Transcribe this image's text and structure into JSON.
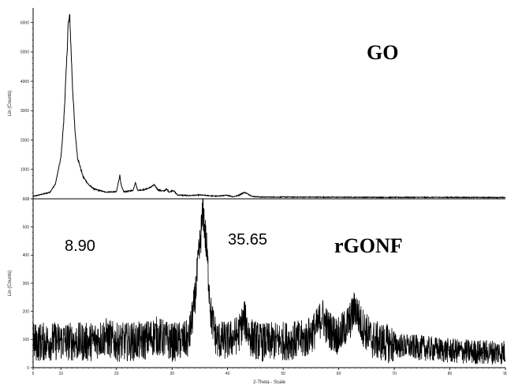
{
  "chart_data": [
    {
      "type": "line",
      "title": "",
      "annotation": "GO",
      "ylabel": "Lin (Counts)",
      "xlim": [
        5,
        90
      ],
      "ylim": [
        0,
        6500
      ],
      "yticks": [
        0,
        1000,
        2000,
        3000,
        4000,
        5000,
        6000
      ],
      "series": [
        {
          "x": [
            5,
            8,
            9,
            10,
            10.5,
            11,
            11.3,
            11.6,
            11.8,
            12.1,
            12.5,
            13,
            14,
            15,
            16,
            18,
            20,
            20.6,
            20.9,
            21.3,
            22,
            23,
            23.4,
            23.8,
            25,
            26,
            26.8,
            27.5,
            28.5,
            29,
            29.5,
            30.2,
            31,
            33,
            35,
            38,
            40,
            41,
            42,
            43,
            43.5,
            44.5,
            46,
            50,
            60,
            70,
            80,
            90
          ],
          "y": [
            80,
            220,
            500,
            1400,
            2600,
            4500,
            5900,
            6200,
            5200,
            3800,
            2400,
            1400,
            750,
            480,
            330,
            230,
            240,
            800,
            420,
            240,
            250,
            290,
            570,
            290,
            310,
            380,
            470,
            300,
            260,
            330,
            230,
            290,
            130,
            110,
            130,
            90,
            120,
            70,
            120,
            220,
            180,
            80,
            60,
            60,
            55,
            50,
            50,
            45
          ]
        }
      ]
    },
    {
      "type": "line",
      "title": "",
      "annotation": "rGONF",
      "peak_labels": [
        "8.90",
        "35.65"
      ],
      "xlabel": "2-Theta - Scale",
      "ylabel": "Lin (Counts)",
      "xlim": [
        5,
        90
      ],
      "ylim": [
        0,
        600
      ],
      "xticks": [
        5,
        10,
        20,
        30,
        40,
        50,
        60,
        70,
        80,
        90
      ],
      "yticks": [
        0,
        100,
        200,
        300,
        400,
        500,
        600
      ],
      "series": [
        {
          "x": [
            5,
            10,
            15,
            18,
            20,
            25,
            27,
            30,
            33,
            34,
            35,
            35.6,
            36.3,
            37,
            38,
            40,
            42,
            43,
            44,
            46,
            50,
            54,
            56,
            57,
            58,
            60,
            62,
            63,
            64,
            66,
            70,
            75,
            80,
            85,
            90
          ],
          "y": [
            90,
            95,
            90,
            110,
            90,
            95,
            115,
            90,
            100,
            220,
            430,
            560,
            400,
            190,
            100,
            95,
            120,
            175,
            110,
            90,
            95,
            100,
            140,
            185,
            140,
            110,
            165,
            215,
            155,
            100,
            80,
            70,
            60,
            55,
            55
          ]
        }
      ]
    }
  ]
}
